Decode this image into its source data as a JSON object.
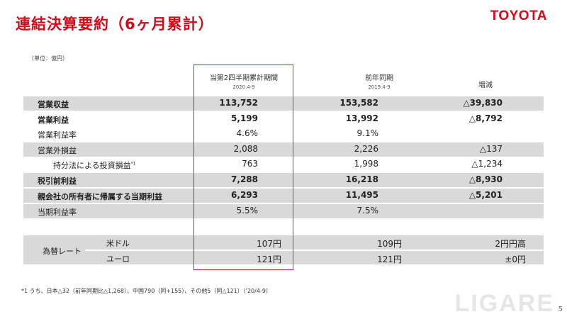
{
  "header": {
    "title": "連結決算要約（6ヶ月累計）",
    "logo": "TOYOTA"
  },
  "unit": "（単位：億円）",
  "columns": {
    "current": {
      "label": "当第2四半期累計期間",
      "sub": "2020.4-9"
    },
    "prior": {
      "label": "前年同期",
      "sub": "2019.4-9"
    },
    "change": {
      "label": "増減"
    }
  },
  "rows": [
    {
      "label": "営業収益",
      "current": "113,752",
      "prior": "153,582",
      "change": "△39,830"
    },
    {
      "label": "営業利益",
      "current": "5,199",
      "prior": "13,992",
      "change": "△8,792"
    },
    {
      "label": "営業利益率",
      "current": "4.6%",
      "prior": "9.1%",
      "change": ""
    },
    {
      "label": "営業外損益",
      "current": "2,088",
      "prior": "2,226",
      "change": "△137"
    },
    {
      "label": "持分法による投資損益",
      "note": "*1",
      "current": "763",
      "prior": "1,998",
      "change": "△1,234"
    },
    {
      "label": "税引前利益",
      "current": "7,288",
      "prior": "16,218",
      "change": "△8,930"
    },
    {
      "label": "親会社の所有者に帰属する当期利益",
      "current": "6,293",
      "prior": "11,495",
      "change": "△5,201"
    },
    {
      "label": "当期利益率",
      "current": "5.5%",
      "prior": "7.5%",
      "change": ""
    }
  ],
  "fx": {
    "label": "為替レート",
    "rows": [
      {
        "currency": "米ドル",
        "current": "107円",
        "prior": "109円",
        "change": "2円円高"
      },
      {
        "currency": "ユーロ",
        "current": "121円",
        "prior": "121円",
        "change": "±0円"
      }
    ]
  },
  "footnote": "*1 うち、日本△32（前年同期比△1,268）、中国790（同+155）、その他5（同△121）（'20/4-9）",
  "watermark": "LIGARE",
  "page_number": "5"
}
